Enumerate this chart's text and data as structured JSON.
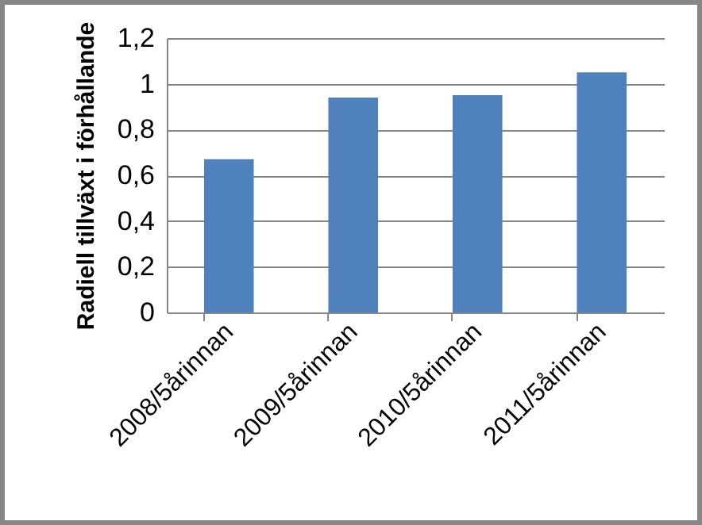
{
  "chart_data": {
    "type": "bar",
    "ylabel": "Radiell tillväxt i förhållande",
    "categories": [
      "2008/5årinnan",
      "2009/5årinnan",
      "2010/5årinnan",
      "2011/5årinnan"
    ],
    "values": [
      0.67,
      0.94,
      0.95,
      1.05
    ],
    "color": "#4f81bd",
    "ylim": [
      0,
      1.2
    ],
    "yticks": [
      0,
      {
        "value": 0.2,
        "label": "0,2"
      },
      {
        "value": 0.4,
        "label": "0,4"
      },
      {
        "value": 0.6,
        "label": "0,6"
      },
      {
        "value": 0.8,
        "label": "0,8"
      },
      1,
      {
        "value": 1.2,
        "label": "1,2"
      }
    ],
    "grid": true
  }
}
